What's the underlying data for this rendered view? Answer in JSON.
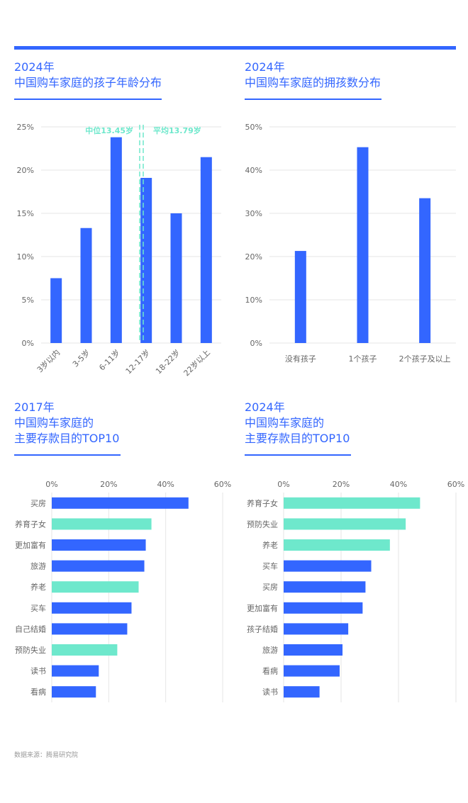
{
  "colors": {
    "accent": "#3366ff",
    "teal": "#6ee8cc",
    "grid": "#e6e6e6",
    "axis_text": "#666666"
  },
  "panels": [
    {
      "title_line1": "2024年",
      "title_line2": "中国购车家庭的孩子年龄分布"
    },
    {
      "title_line1": "2024年",
      "title_line2": "中国购车家庭的拥孩数分布"
    },
    {
      "title_line1": "2017年",
      "title_line2": "中国购车家庭的",
      "title_line3": "主要存款目的TOP10"
    },
    {
      "title_line1": "2024年",
      "title_line2": "中国购车家庭的",
      "title_line3": "主要存款目的TOP10"
    }
  ],
  "footer": {
    "source": "数据来源：腾易研究院"
  },
  "chart_data": [
    {
      "type": "bar",
      "categories": [
        "3岁以内",
        "3-5岁",
        "6-11岁",
        "12-17岁",
        "18-22岁",
        "22岁以上"
      ],
      "values": [
        7.5,
        13.3,
        23.8,
        19.1,
        15.0,
        21.5
      ],
      "ylim": [
        0,
        25
      ],
      "yticks": [
        "0%",
        "5%",
        "10%",
        "15%",
        "20%",
        "25%"
      ],
      "grid": true,
      "annotations": [
        {
          "label": "中位13.45岁",
          "color": "#6ee8cc"
        },
        {
          "label": "平均13.79岁",
          "color": "#6ee8cc"
        }
      ]
    },
    {
      "type": "bar",
      "categories": [
        "没有孩子",
        "1个孩子",
        "2个孩子及以上"
      ],
      "values": [
        21.3,
        45.3,
        33.5
      ],
      "ylim": [
        0,
        50
      ],
      "yticks": [
        "0%",
        "10%",
        "20%",
        "30%",
        "40%",
        "50%"
      ],
      "grid": true
    },
    {
      "type": "bar",
      "orientation": "horizontal",
      "categories": [
        "买房",
        "养育子女",
        "更加富有",
        "旅游",
        "养老",
        "买车",
        "自己结婚",
        "预防失业",
        "读书",
        "看病"
      ],
      "values": [
        48,
        35,
        33,
        32.5,
        30.5,
        28,
        26.5,
        23,
        16.5,
        15.5
      ],
      "highlight": [
        false,
        true,
        false,
        false,
        true,
        false,
        false,
        true,
        false,
        false
      ],
      "xlim": [
        0,
        60
      ],
      "xticks": [
        "0%",
        "20%",
        "40%",
        "60%"
      ],
      "grid": true
    },
    {
      "type": "bar",
      "orientation": "horizontal",
      "categories": [
        "养育子女",
        "预防失业",
        "养老",
        "买车",
        "买房",
        "更加富有",
        "孩子结婚",
        "旅游",
        "看病",
        "读书"
      ],
      "values": [
        47.5,
        42.5,
        37,
        30.5,
        28.5,
        27.5,
        22.5,
        20.5,
        19.5,
        12.5
      ],
      "highlight": [
        true,
        true,
        true,
        false,
        false,
        false,
        false,
        false,
        false,
        false
      ],
      "xlim": [
        0,
        60
      ],
      "xticks": [
        "0%",
        "20%",
        "40%",
        "60%"
      ],
      "grid": true
    }
  ]
}
